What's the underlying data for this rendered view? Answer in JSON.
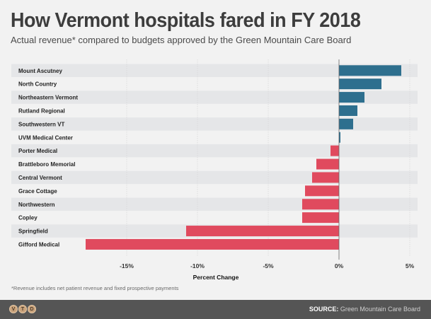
{
  "header": {
    "title": "How Vermont hospitals fared in FY 2018",
    "subtitle": "Actual revenue* compared to budgets approved by the Green Mountain Care Board"
  },
  "chart_data": {
    "type": "bar",
    "orientation": "horizontal",
    "title": "How Vermont hospitals fared in FY 2018",
    "subtitle": "Actual revenue* compared to budgets approved by the Green Mountain Care Board",
    "xlabel": "Percent Change",
    "ylabel": "",
    "xlim": [
      -20,
      5.5
    ],
    "xticks": [
      -15,
      -10,
      -5,
      0,
      5
    ],
    "xtick_labels": [
      "-15%",
      "-10%",
      "-5%",
      "0%",
      "5%"
    ],
    "grid": true,
    "categories": [
      "Mount Ascutney",
      "North Country",
      "Northeastern Vermont",
      "Rutland Regional",
      "Southwestern VT",
      "UVM Medical Center",
      "Porter Medical",
      "Brattleboro Memorial",
      "Central Vermont",
      "Grace Cottage",
      "Northwestern",
      "Copley",
      "Springfield",
      "Gifford Medical"
    ],
    "values": [
      4.4,
      3.0,
      1.8,
      1.3,
      1.0,
      0.1,
      -0.6,
      -1.6,
      -1.9,
      -2.4,
      -2.6,
      -2.6,
      -10.8,
      -17.9
    ],
    "colors": {
      "positive": "#2e6f8e",
      "negative": "#e04a5e"
    }
  },
  "footnote": "*Revenue includes net patient revenue and fixed prospective payments",
  "footer": {
    "logo_letters": [
      "V",
      "T",
      "D"
    ],
    "source_label": "SOURCE:",
    "source_text": " Green Mountain Care Board"
  }
}
